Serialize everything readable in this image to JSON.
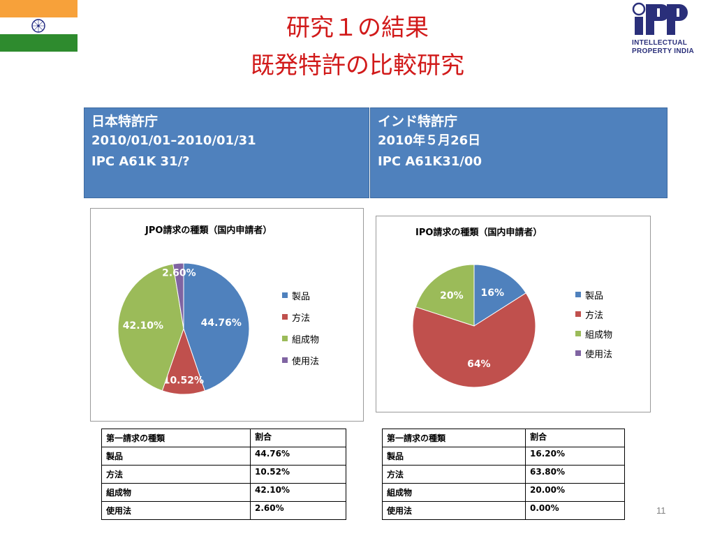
{
  "slide": {
    "title_line1": "研究１の結果",
    "title_line2": "既発特許の比較研究",
    "page_number": "11"
  },
  "logo": {
    "line1": "INTELLECTUAL",
    "line2": "PROPERTY INDIA"
  },
  "info_left": {
    "heading": "日本特許庁",
    "line1": "2010/01/01–2010/01/31",
    "line2": "IPC A61K 31/?"
  },
  "info_right": {
    "heading": "インド特許庁",
    "line1": "2010年５月26日",
    "line2": "IPC A61K31/00"
  },
  "colors": {
    "blue": "#4f81bd",
    "red": "#c0504d",
    "green": "#9bbb59",
    "purple": "#8064a2",
    "title_red": "#d11a1a"
  },
  "chart_data": [
    {
      "type": "pie",
      "title": "JPO請求の種類（国内申請者）",
      "categories": [
        "製品",
        "方法",
        "組成物",
        "使用法"
      ],
      "values": [
        44.76,
        10.52,
        42.1,
        2.6
      ],
      "data_labels": [
        "44.76%",
        "10.52%",
        "42.10%",
        "2.60%"
      ],
      "legend": "right"
    },
    {
      "type": "pie",
      "title": "IPO請求の種類（国内申請者）",
      "categories": [
        "製品",
        "方法",
        "組成物",
        "使用法"
      ],
      "values": [
        16,
        64,
        20,
        0
      ],
      "data_labels": [
        "16%",
        "64%",
        "20%",
        ""
      ],
      "legend": "right"
    }
  ],
  "table_left": {
    "header": [
      "第一請求の種類",
      "割合"
    ],
    "rows": [
      [
        "製品",
        "44.76%"
      ],
      [
        "方法",
        "10.52%"
      ],
      [
        "組成物",
        "42.10%"
      ],
      [
        "使用法",
        "2.60%"
      ]
    ]
  },
  "table_right": {
    "header": [
      "第一請求の種類",
      "割合"
    ],
    "rows": [
      [
        "製品",
        "16.20%"
      ],
      [
        "方法",
        "63.80%"
      ],
      [
        "組成物",
        "20.00%"
      ],
      [
        "使用法",
        "0.00%"
      ]
    ]
  }
}
